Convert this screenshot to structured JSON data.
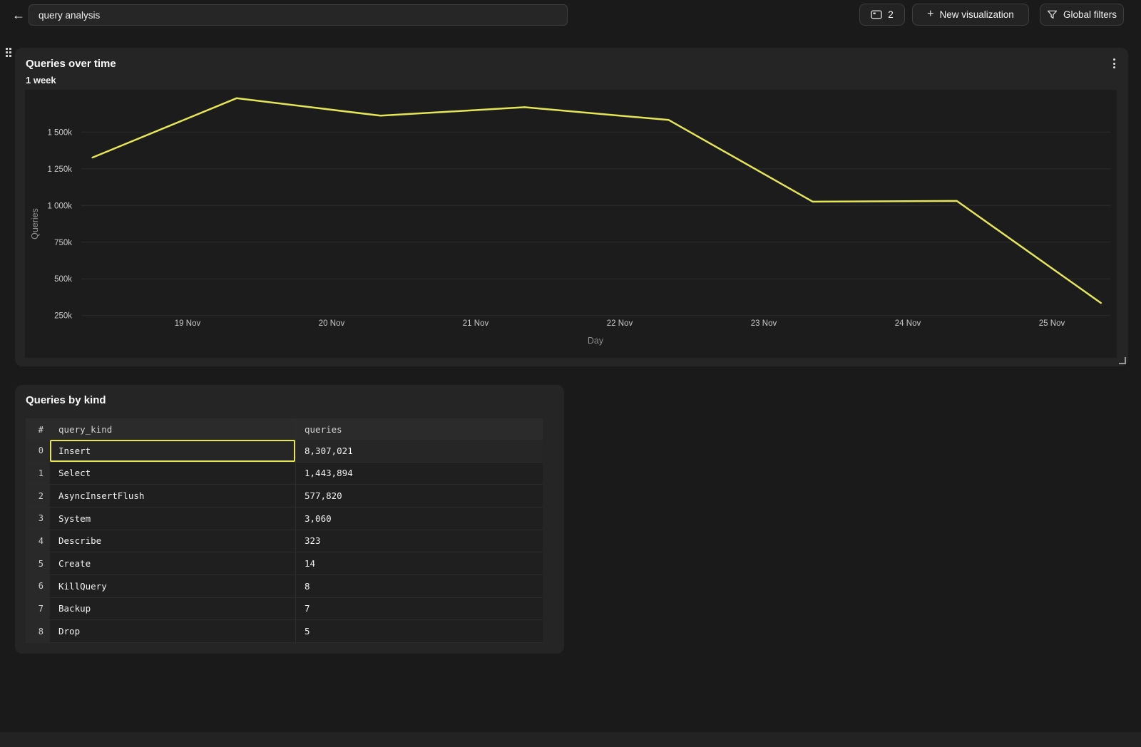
{
  "topbar": {
    "back_icon": "←",
    "search": {
      "value": "query analysis"
    },
    "buttons": {
      "tabs": {
        "count": "2"
      },
      "new_visualization": {
        "plus": "+",
        "label": "New visualization"
      },
      "global_filters": {
        "label": "Global filters"
      }
    }
  },
  "colors": {
    "accent_yellow": "#e4e557",
    "page_bg": "#1a1a1a",
    "panel_bg": "#252525",
    "chart_bg": "#1c1c1c"
  },
  "chart_data": {
    "type": "line",
    "title": "Queries over time",
    "subtitle": "1 week",
    "xlabel": "Day",
    "ylabel": "Queries",
    "grid": "horizontal",
    "legend": "none",
    "line_color": "#e4e557",
    "ylim_k": [
      250,
      1500
    ],
    "y_ticks": [
      {
        "label": "1 500k",
        "value_k": 1500
      },
      {
        "label": "1 250k",
        "value_k": 1250
      },
      {
        "label": "1 000k",
        "value_k": 1000
      },
      {
        "label": "750k",
        "value_k": 750
      },
      {
        "label": "500k",
        "value_k": 500
      },
      {
        "label": "250k",
        "value_k": 250
      }
    ],
    "x_ticks": [
      {
        "label": "19 Nov",
        "day": 19
      },
      {
        "label": "20 Nov",
        "day": 20
      },
      {
        "label": "21 Nov",
        "day": 21
      },
      {
        "label": "22 Nov",
        "day": 22
      },
      {
        "label": "23 Nov",
        "day": 23
      },
      {
        "label": "24 Nov",
        "day": 24
      },
      {
        "label": "25 Nov",
        "day": 25
      }
    ],
    "points": [
      {
        "day": 18.34,
        "queries_k": 1327
      },
      {
        "day": 19.34,
        "queries_k": 1731
      },
      {
        "day": 20.34,
        "queries_k": 1612
      },
      {
        "day": 21.34,
        "queries_k": 1670
      },
      {
        "day": 22.34,
        "queries_k": 1583
      },
      {
        "day": 23.34,
        "queries_k": 1026
      },
      {
        "day": 24.34,
        "queries_k": 1031
      },
      {
        "day": 25.34,
        "queries_k": 336
      }
    ]
  },
  "table_panel": {
    "title": "Queries by kind",
    "columns": [
      "#",
      "query_kind",
      "queries"
    ],
    "rows": [
      {
        "index": "0",
        "query_kind": "Insert",
        "queries": "8,307,021",
        "selected": true
      },
      {
        "index": "1",
        "query_kind": "Select",
        "queries": "1,443,894",
        "selected": false
      },
      {
        "index": "2",
        "query_kind": "AsyncInsertFlush",
        "queries": "577,820",
        "selected": false
      },
      {
        "index": "3",
        "query_kind": "System",
        "queries": "3,060",
        "selected": false
      },
      {
        "index": "4",
        "query_kind": "Describe",
        "queries": "323",
        "selected": false
      },
      {
        "index": "5",
        "query_kind": "Create",
        "queries": "14",
        "selected": false
      },
      {
        "index": "6",
        "query_kind": "KillQuery",
        "queries": "8",
        "selected": false
      },
      {
        "index": "7",
        "query_kind": "Backup",
        "queries": "7",
        "selected": false
      },
      {
        "index": "8",
        "query_kind": "Drop",
        "queries": "5",
        "selected": false
      }
    ]
  }
}
